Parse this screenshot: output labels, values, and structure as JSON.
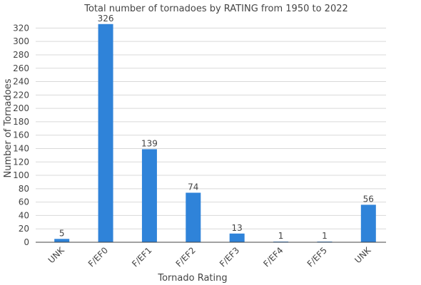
{
  "chart_data": {
    "type": "bar",
    "title": "Total number of tornadoes by RATING from 1950 to 2022",
    "xlabel": "Tornado Rating",
    "ylabel": "Number of Tornadoes",
    "categories": [
      "UNK",
      "F/EF0",
      "F/EF1",
      "F/EF2",
      "F/EF3",
      "F/EF4",
      "F/EF5",
      "UNK"
    ],
    "values": [
      5,
      326,
      139,
      74,
      13,
      1,
      1,
      56
    ],
    "ylim": [
      0,
      330
    ],
    "yticks": [
      0,
      20,
      40,
      60,
      80,
      100,
      120,
      140,
      160,
      180,
      200,
      220,
      240,
      260,
      280,
      300,
      320
    ],
    "grid": true,
    "legend": "none",
    "bar_color": "#2f83d9"
  }
}
